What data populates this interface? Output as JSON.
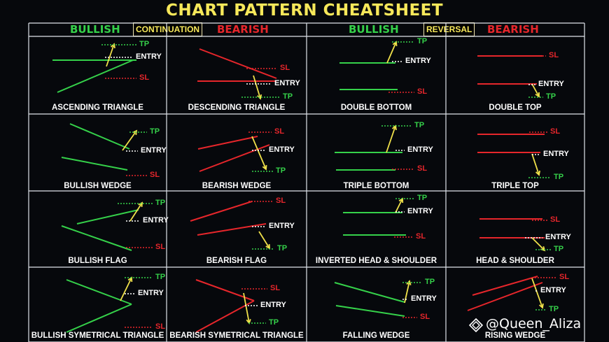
{
  "title": "CHART PATTERN CHEATSHEET",
  "headers": {
    "continuation_bullish": "BULLISH",
    "continuation_tag": "CONTINUATION",
    "continuation_bearish": "BEARISH",
    "reversal_bullish": "BULLISH",
    "reversal_tag": "REVERSAL",
    "reversal_bearish": "BEARISH"
  },
  "labels": {
    "tp": "TP",
    "sl": "SL",
    "entry": "ENTRY"
  },
  "patterns": [
    "ASCENDING TRIANGLE",
    "DESCENDING TRIANGLE",
    "DOUBLE BOTTOM",
    "DOUBLE TOP",
    "BULLISH WEDGE",
    "BEARISH WEDGE",
    "TRIPLE BOTTOM",
    "TRIPLE TOP",
    "BULLISH FLAG",
    "BEARISH FLAG",
    "INVERTED HEAD & SHOULDER",
    "HEAD & SHOULDER",
    "BULLISH SYMETRICAL TRIANGLE",
    "BEARISH SYMETRICAL TRIANGLE",
    "FALLING WEDGE",
    "RISING WEDGE"
  ],
  "watermark": "@Queen_Aliza",
  "colors": {
    "title": "#f7e85a",
    "bullish": "#35d14a",
    "bearish": "#e6262b",
    "price": "#f0e14a",
    "grid": "#dfe3ea"
  }
}
